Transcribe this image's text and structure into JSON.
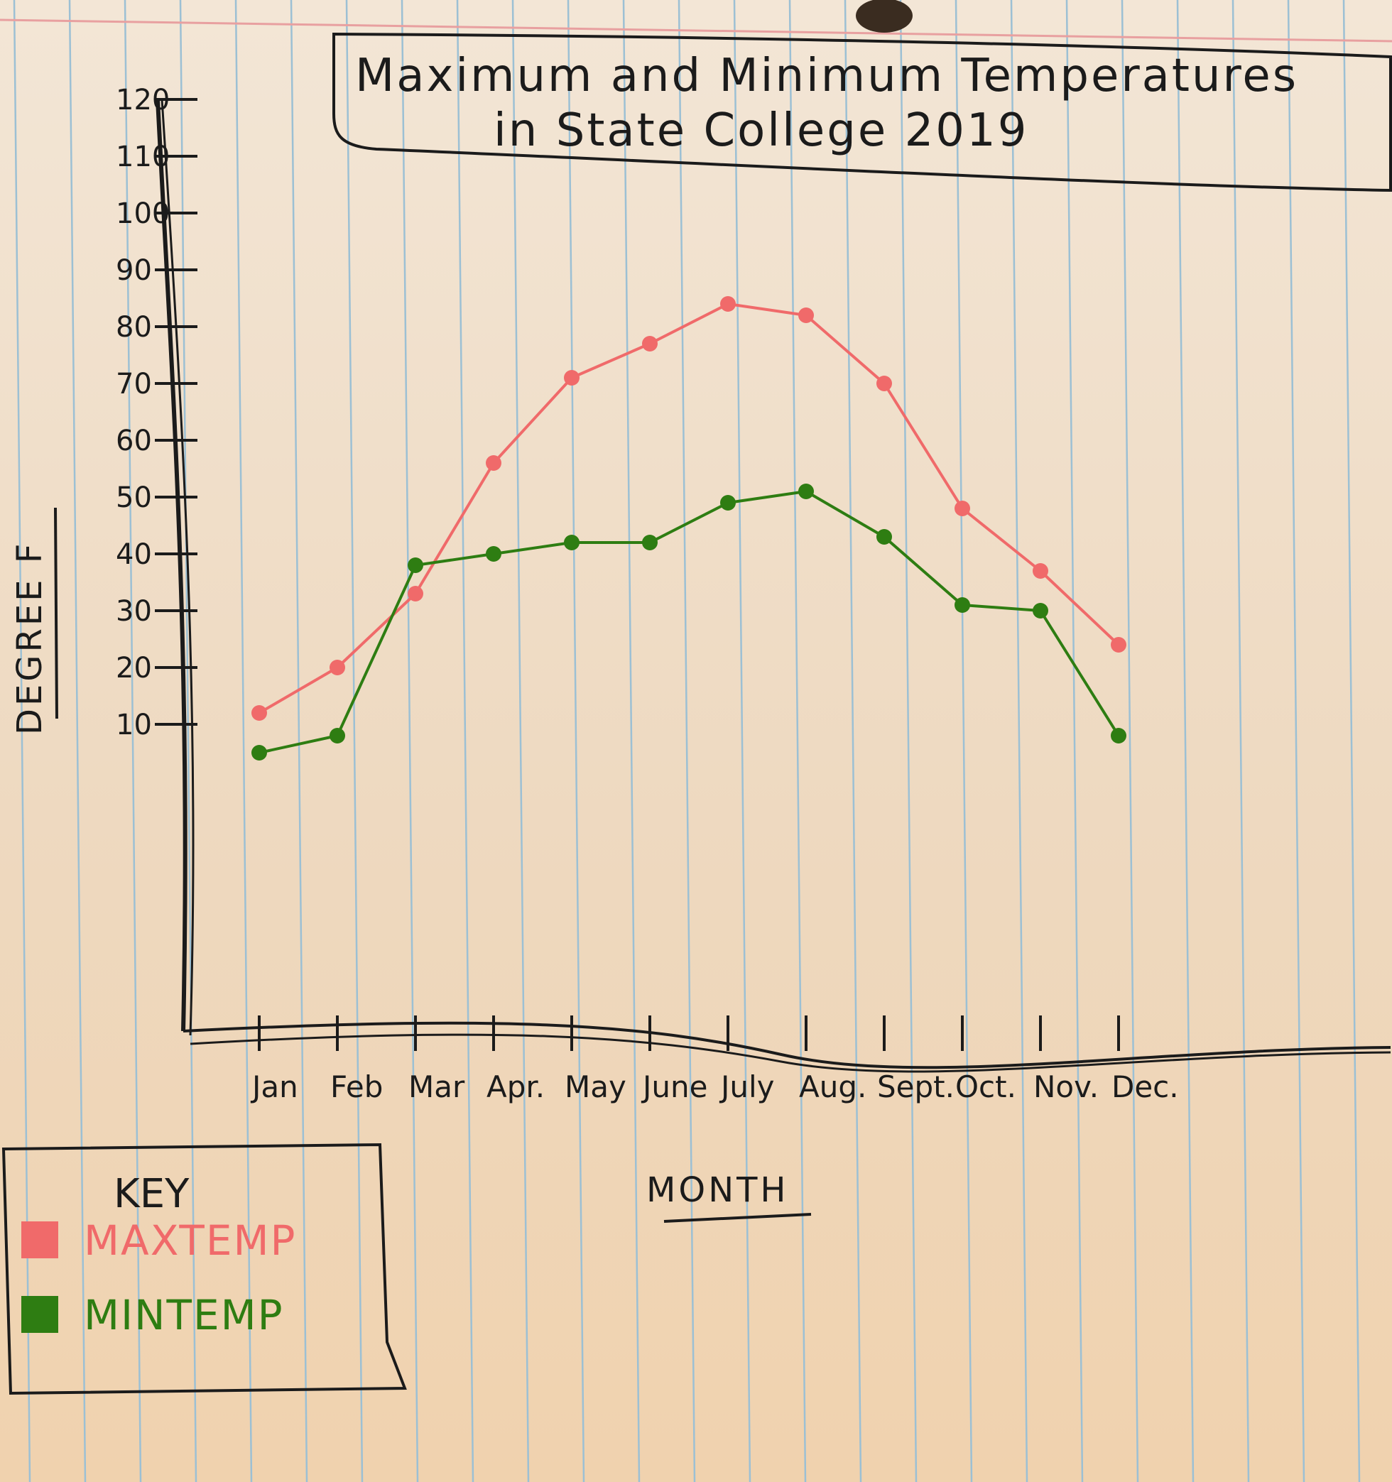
{
  "chart_data": {
    "type": "line",
    "title": "Maximum and Minimum Temperatures in State College 2019",
    "title_lines": [
      "Maximum and Minimum Temperatures",
      "in State College 2019"
    ],
    "xlabel": "MONTH",
    "ylabel": "DEGREE F",
    "categories": [
      "Jan",
      "Feb",
      "Mar",
      "Apr.",
      "May",
      "June",
      "July",
      "Aug.",
      "Sept.",
      "Oct.",
      "Nov.",
      "Dec."
    ],
    "yticks": [
      10,
      20,
      30,
      40,
      50,
      60,
      70,
      80,
      90,
      100,
      110,
      120
    ],
    "ylim": [
      0,
      120
    ],
    "legend_title": "KEY",
    "legend_position": "bottom-left",
    "grid": false,
    "series": [
      {
        "name": "MAXTEMP",
        "color": "#f06a6a",
        "x": [
          "Jan",
          "Feb",
          "Mar",
          "Apr.",
          "May",
          "June",
          "July",
          "Aug.",
          "Sept.",
          "Oct.",
          "Nov.",
          "Dec."
        ],
        "values": [
          12,
          20,
          33,
          56,
          71,
          77,
          84,
          82,
          70,
          48,
          37,
          24
        ]
      },
      {
        "name": "MINTEMP",
        "color": "#2e7d12",
        "x": [
          "Jan",
          "Feb",
          "Mar",
          "Apr.",
          "May",
          "June",
          "July",
          "Aug.",
          "Sept.",
          "Oct.",
          "Nov.",
          "Dec."
        ],
        "values": [
          5,
          8,
          38,
          40,
          42,
          42,
          49,
          51,
          43,
          31,
          30,
          8
        ]
      }
    ]
  }
}
